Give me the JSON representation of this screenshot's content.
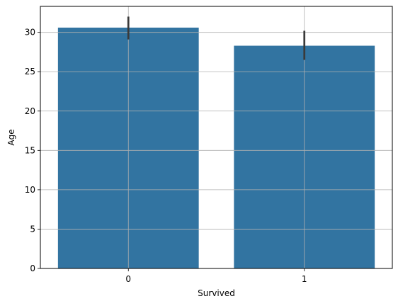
{
  "chart_data": {
    "type": "bar",
    "categories": [
      "0",
      "1"
    ],
    "values": [
      30.6,
      28.3
    ],
    "error_bars": [
      {
        "low": 29.1,
        "high": 32.0
      },
      {
        "low": 26.5,
        "high": 30.2
      }
    ],
    "xlabel": "Survived",
    "ylabel": "Age",
    "ylim": [
      0,
      33.3
    ],
    "yticks": [
      0,
      5,
      10,
      15,
      20,
      25,
      30
    ],
    "grid": true,
    "bar_color": "#3274a1",
    "error_color": "#3a3a3a",
    "grid_color": "#b0b0b0"
  }
}
